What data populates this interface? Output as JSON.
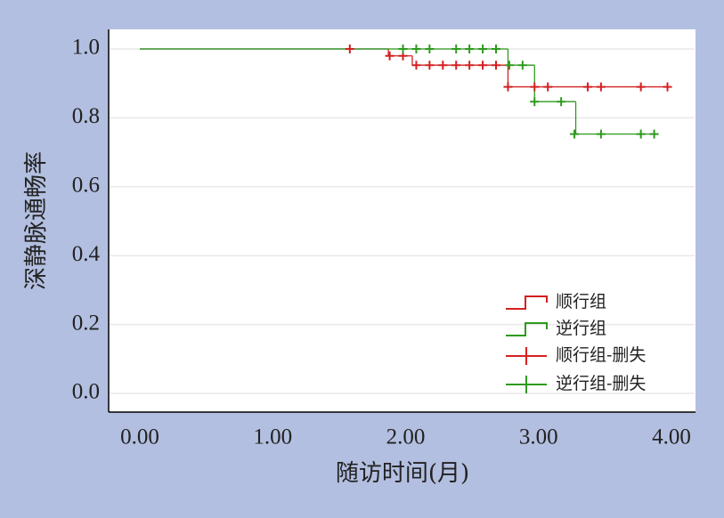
{
  "chart_data": {
    "type": "km-step",
    "xlabel": "随访时间(月)",
    "ylabel": "深静脉通畅率",
    "xlim": [
      0,
      4
    ],
    "ylim": [
      0,
      1
    ],
    "xticks": [
      {
        "value": 0,
        "label": "0.00"
      },
      {
        "value": 1,
        "label": "1.00"
      },
      {
        "value": 2,
        "label": "2.00"
      },
      {
        "value": 3,
        "label": "3.00"
      },
      {
        "value": 4,
        "label": "4.00"
      }
    ],
    "yticks": [
      {
        "value": 0,
        "label": "0.0"
      },
      {
        "value": 0.2,
        "label": "0.2"
      },
      {
        "value": 0.4,
        "label": "0.4"
      },
      {
        "value": 0.6,
        "label": "0.6"
      },
      {
        "value": 0.8,
        "label": "0.8"
      },
      {
        "value": 1,
        "label": "1.0"
      }
    ],
    "grid": true,
    "series": [
      {
        "name": "顺行组",
        "color": "#d42020",
        "x": [
          0,
          1.87,
          2.05,
          2.77,
          3.97
        ],
        "values": [
          1,
          0.98,
          0.953,
          0.89,
          0.89
        ]
      },
      {
        "name": "逆行组",
        "color": "#2e9a1e",
        "x": [
          0,
          2.77,
          2.97,
          3.28,
          3.87
        ],
        "values": [
          1,
          0.953,
          0.847,
          0.753,
          0.753
        ]
      }
    ],
    "censored": [
      {
        "name": "顺行组-删失",
        "color": "#d42020",
        "x": [
          1.58,
          1.88,
          1.98,
          2.08,
          2.18,
          2.28,
          2.38,
          2.48,
          2.58,
          2.68,
          2.77,
          2.97,
          3.07,
          3.37,
          3.47,
          3.77,
          3.97
        ],
        "values": [
          1,
          0.98,
          0.98,
          0.953,
          0.953,
          0.953,
          0.953,
          0.953,
          0.953,
          0.953,
          0.89,
          0.89,
          0.89,
          0.89,
          0.89,
          0.89,
          0.89
        ]
      },
      {
        "name": "逆行组-删失",
        "color": "#2e9a1e",
        "x": [
          1.98,
          2.08,
          2.18,
          2.38,
          2.48,
          2.58,
          2.68,
          2.78,
          2.88,
          2.97,
          3.17,
          3.27,
          3.47,
          3.77,
          3.87
        ],
        "values": [
          1,
          1,
          1,
          1,
          1,
          1,
          1,
          0.953,
          0.953,
          0.847,
          0.847,
          0.753,
          0.753,
          0.753,
          0.753
        ]
      }
    ]
  }
}
